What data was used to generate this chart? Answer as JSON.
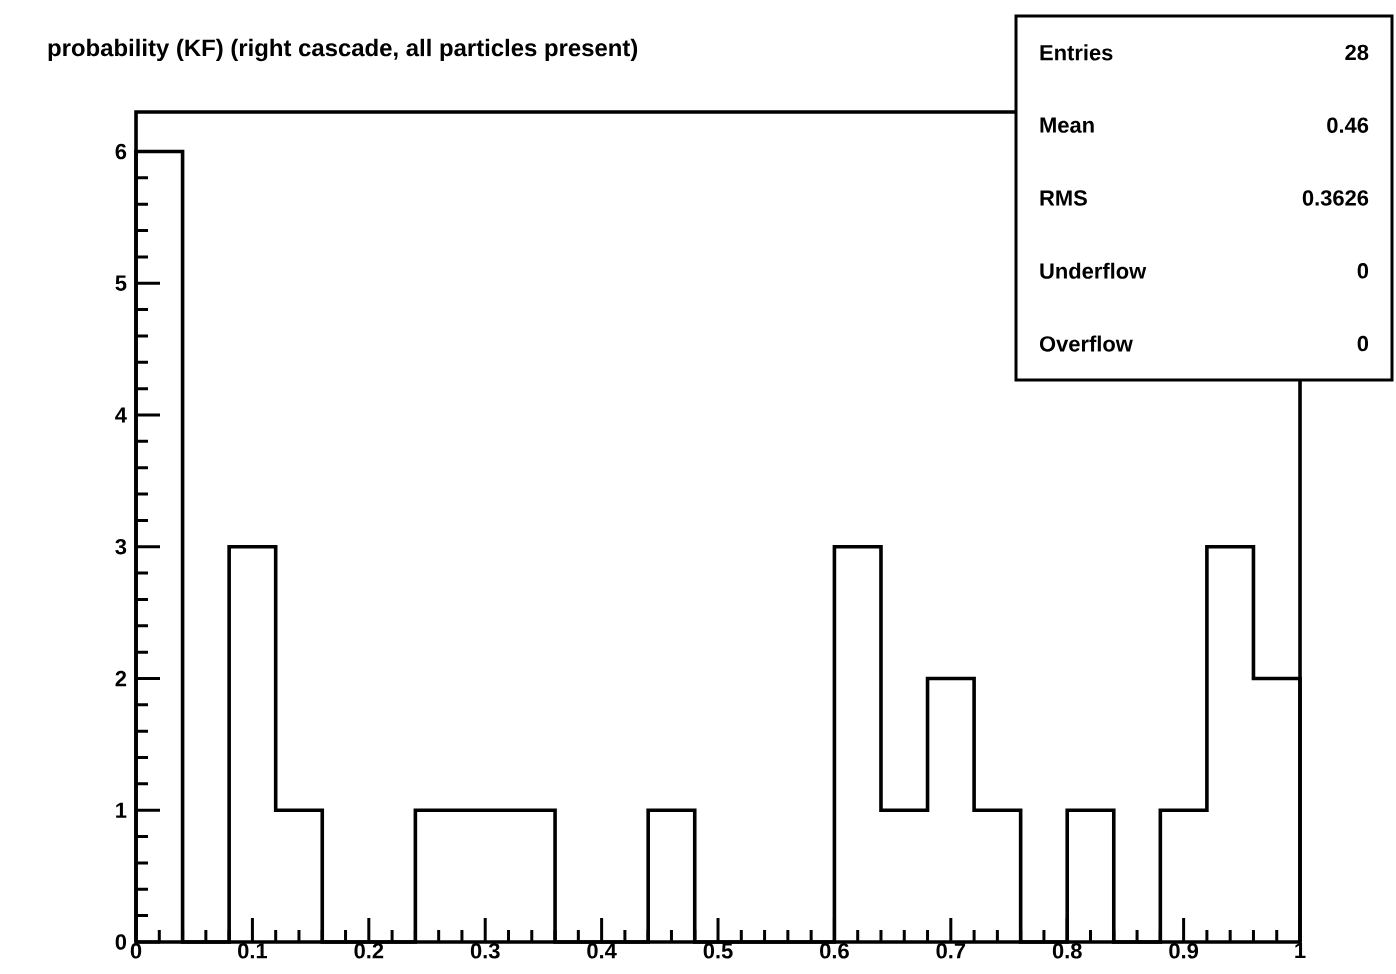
{
  "chart_data": {
    "type": "histogram",
    "title": "probability (KF) (right cascade, all particles present)",
    "bins": [
      0,
      0.04,
      0.08,
      0.12,
      0.16,
      0.2,
      0.24,
      0.28,
      0.32,
      0.36,
      0.4,
      0.44,
      0.48,
      0.52,
      0.56,
      0.6,
      0.64,
      0.68,
      0.72,
      0.76,
      0.8,
      0.84,
      0.88,
      0.92,
      0.96,
      1
    ],
    "values": [
      6,
      0,
      3,
      1,
      0,
      0,
      1,
      1,
      1,
      0,
      0,
      1,
      0,
      0,
      0,
      3,
      1,
      2,
      1,
      0,
      1,
      0,
      1,
      3,
      2
    ],
    "color": "#000000",
    "xlim": [
      0,
      1
    ],
    "ylim": [
      0,
      6.3
    ],
    "xticks": [
      0,
      0.1,
      0.2,
      0.3,
      0.4,
      0.5,
      0.6,
      0.7,
      0.8,
      0.9,
      1
    ],
    "yticks": [
      0,
      1,
      2,
      3,
      4,
      5,
      6
    ],
    "annotations": [
      "Entries",
      "28",
      "Mean",
      "0.46",
      "RMS",
      "0.3626",
      "Underflow",
      "0",
      "Overflow",
      "0"
    ]
  }
}
